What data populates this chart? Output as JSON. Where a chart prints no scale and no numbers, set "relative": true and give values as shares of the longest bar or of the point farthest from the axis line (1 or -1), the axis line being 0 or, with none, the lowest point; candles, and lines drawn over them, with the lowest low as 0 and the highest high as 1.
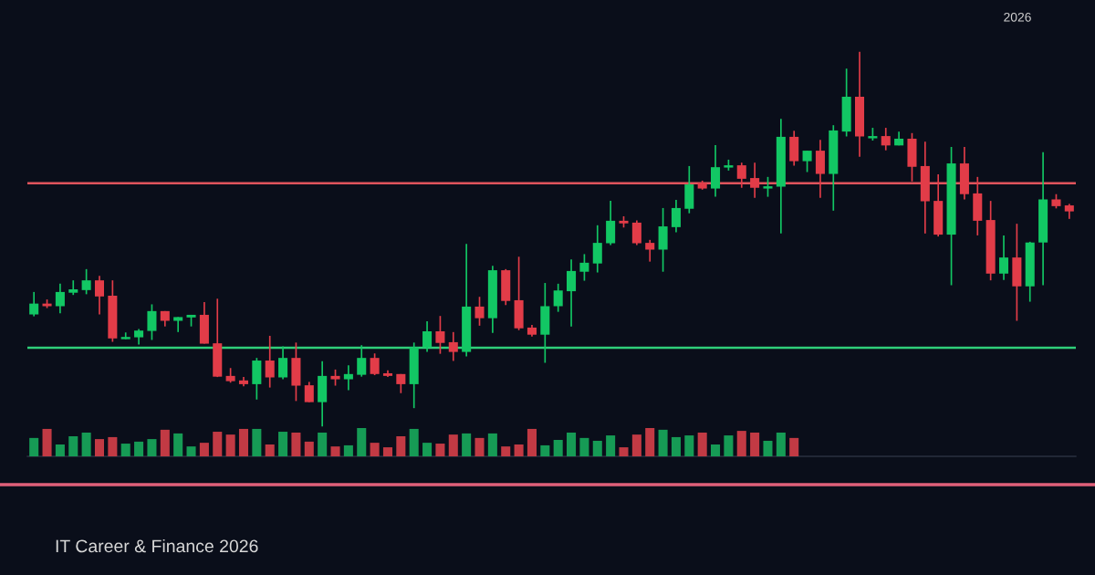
{
  "chart_data": [
    {
      "type": "candlestick",
      "relative": true,
      "subtitle": "IT Career & Finance 2026",
      "annotations": [
        "2026"
      ],
      "colors": [
        "#12c764",
        "#e23c48",
        "#12c764",
        "#12c764",
        "#12c764",
        "#e23c48",
        "#e23c48",
        "#12c764",
        "#12c764",
        "#12c764",
        "#e23c48",
        "#12c764",
        "#12c764",
        "#e23c48",
        "#e23c48",
        "#e23c48",
        "#e23c48",
        "#12c764",
        "#e23c48",
        "#12c764",
        "#e23c48",
        "#e23c48",
        "#12c764",
        "#e23c48",
        "#12c764",
        "#12c764",
        "#e23c48",
        "#e23c48",
        "#e23c48",
        "#12c764",
        "#12c764",
        "#e23c48",
        "#e23c48",
        "#12c764",
        "#e23c48",
        "#12c764",
        "#e23c48",
        "#e23c48",
        "#e23c48",
        "#12c764",
        "#12c764",
        "#12c764",
        "#12c764",
        "#12c764",
        "#12c764",
        "#e23c48",
        "#e23c48",
        "#e23c48",
        "#12c764",
        "#12c764",
        "#12c764",
        "#e23c48",
        "#12c764",
        "#12c764",
        "#e23c48",
        "#e23c48",
        "#12c764",
        "#12c764",
        "#e23c48",
        "#12c764",
        "#e23c48",
        "#12c764",
        "#12c764",
        "#e23c48",
        "#12c764",
        "#e23c48",
        "#12c764",
        "#e23c48",
        "#e23c48",
        "#e23c48",
        "#12c764",
        "#e23c48",
        "#e23c48",
        "#e23c48",
        "#12c764",
        "#e23c48",
        "#12c764",
        "#12c764",
        "#e23c48",
        "#e23c48"
      ],
      "categories": [
        null,
        null,
        null,
        null,
        null,
        null,
        null,
        null,
        null,
        null,
        null,
        null,
        null,
        null,
        null,
        null,
        null,
        null,
        null,
        null,
        null,
        null,
        null,
        null,
        null,
        null,
        null,
        null,
        null,
        null,
        null,
        null,
        null,
        null,
        null,
        null,
        null,
        null,
        null,
        null,
        null,
        null,
        null,
        null,
        null,
        null,
        null,
        null,
        null,
        null,
        null,
        null,
        null,
        null,
        null,
        null,
        null,
        null,
        null,
        null,
        null,
        null,
        null,
        null,
        null,
        null,
        null,
        null,
        null,
        null,
        null,
        null,
        null,
        null,
        null,
        null,
        null,
        null,
        null,
        null
      ],
      "ohlc": [
        [
          0.299,
          0.359,
          0.294,
          0.328
        ],
        [
          0.328,
          0.339,
          0.316,
          0.321
        ],
        [
          0.321,
          0.381,
          0.302,
          0.359
        ],
        [
          0.357,
          0.39,
          0.351,
          0.366
        ],
        [
          0.364,
          0.42,
          0.353,
          0.39
        ],
        [
          0.39,
          0.402,
          0.299,
          0.347
        ],
        [
          0.349,
          0.39,
          0.226,
          0.235
        ],
        [
          0.233,
          0.251,
          0.233,
          0.239
        ],
        [
          0.238,
          0.26,
          0.219,
          0.256
        ],
        [
          0.255,
          0.326,
          0.231,
          0.308
        ],
        [
          0.308,
          0.308,
          0.267,
          0.282
        ],
        [
          0.282,
          0.292,
          0.252,
          0.292
        ],
        [
          0.291,
          0.298,
          0.267,
          0.298
        ],
        [
          0.298,
          0.332,
          0.221,
          0.221
        ],
        [
          0.222,
          0.341,
          0.132,
          0.133
        ],
        [
          0.135,
          0.156,
          0.117,
          0.121
        ],
        [
          0.123,
          0.132,
          0.107,
          0.113
        ],
        [
          0.113,
          0.183,
          0.072,
          0.176
        ],
        [
          0.176,
          0.242,
          0.104,
          0.131
        ],
        [
          0.131,
          0.214,
          0.126,
          0.183
        ],
        [
          0.183,
          0.224,
          0.068,
          0.109
        ],
        [
          0.11,
          0.119,
          0.065,
          0.065
        ],
        [
          0.065,
          0.174,
          0.0,
          0.135
        ],
        [
          0.135,
          0.152,
          0.109,
          0.126
        ],
        [
          0.126,
          0.163,
          0.097,
          0.14
        ],
        [
          0.138,
          0.217,
          0.133,
          0.183
        ],
        [
          0.183,
          0.195,
          0.137,
          0.14
        ],
        [
          0.142,
          0.15,
          0.132,
          0.135
        ],
        [
          0.14,
          0.14,
          0.089,
          0.113
        ],
        [
          0.113,
          0.224,
          0.049,
          0.211
        ],
        [
          0.211,
          0.281,
          0.199,
          0.254
        ],
        [
          0.254,
          0.295,
          0.194,
          0.223
        ],
        [
          0.225,
          0.252,
          0.175,
          0.199
        ],
        [
          0.199,
          0.487,
          0.187,
          0.32
        ],
        [
          0.32,
          0.346,
          0.269,
          0.289
        ],
        [
          0.289,
          0.429,
          0.25,
          0.417
        ],
        [
          0.417,
          0.42,
          0.324,
          0.335
        ],
        [
          0.337,
          0.453,
          0.257,
          0.262
        ],
        [
          0.264,
          0.271,
          0.24,
          0.245
        ],
        [
          0.245,
          0.383,
          0.17,
          0.321
        ],
        [
          0.321,
          0.381,
          0.306,
          0.363
        ],
        [
          0.361,
          0.446,
          0.267,
          0.415
        ],
        [
          0.413,
          0.46,
          0.389,
          0.437
        ],
        [
          0.435,
          0.537,
          0.411,
          0.49
        ],
        [
          0.489,
          0.602,
          0.484,
          0.549
        ],
        [
          0.549,
          0.561,
          0.531,
          0.542
        ],
        [
          0.544,
          0.55,
          0.484,
          0.489
        ],
        [
          0.49,
          0.498,
          0.44,
          0.472
        ],
        [
          0.472,
          0.583,
          0.413,
          0.534
        ],
        [
          0.532,
          0.605,
          0.518,
          0.583
        ],
        [
          0.581,
          0.695,
          0.569,
          0.646
        ],
        [
          0.65,
          0.656,
          0.632,
          0.635
        ],
        [
          0.635,
          0.751,
          0.613,
          0.692
        ],
        [
          0.691,
          0.712,
          0.683,
          0.697
        ],
        [
          0.697,
          0.704,
          0.637,
          0.661
        ],
        [
          0.663,
          0.704,
          0.61,
          0.637
        ],
        [
          0.635,
          0.666,
          0.613,
          0.641
        ],
        [
          0.64,
          0.821,
          0.515,
          0.773
        ],
        [
          0.773,
          0.789,
          0.696,
          0.708
        ],
        [
          0.708,
          0.736,
          0.679,
          0.736
        ],
        [
          0.736,
          0.765,
          0.61,
          0.674
        ],
        [
          0.674,
          0.804,
          0.576,
          0.79
        ],
        [
          0.787,
          0.955,
          0.774,
          0.88
        ],
        [
          0.88,
          1.0,
          0.72,
          0.774
        ],
        [
          0.769,
          0.797,
          0.763,
          0.775
        ],
        [
          0.775,
          0.797,
          0.737,
          0.75
        ],
        [
          0.75,
          0.787,
          0.75,
          0.768
        ],
        [
          0.768,
          0.783,
          0.654,
          0.693
        ],
        [
          0.695,
          0.76,
          0.515,
          0.601
        ],
        [
          0.602,
          0.673,
          0.507,
          0.512
        ],
        [
          0.512,
          0.746,
          0.377,
          0.702
        ],
        [
          0.702,
          0.746,
          0.606,
          0.62
        ],
        [
          0.622,
          0.666,
          0.51,
          0.549
        ],
        [
          0.551,
          0.602,
          0.39,
          0.408
        ],
        [
          0.408,
          0.51,
          0.391,
          0.451
        ],
        [
          0.451,
          0.541,
          0.282,
          0.374
        ],
        [
          0.374,
          0.493,
          0.333,
          0.491
        ],
        [
          0.491,
          0.732,
          0.377,
          0.606
        ],
        [
          0.606,
          0.62,
          0.582,
          0.588
        ],
        [
          0.59,
          0.594,
          0.554,
          0.574
        ]
      ],
      "ref_lines": [
        {
          "axis": "y",
          "value": 0.649,
          "color": "#e0545c"
        },
        {
          "axis": "y",
          "value": 0.21,
          "color": "#2fcf7a"
        }
      ]
    },
    {
      "type": "bar",
      "relative": true,
      "categories": [
        null,
        null,
        null,
        null,
        null,
        null,
        null,
        null,
        null,
        null,
        null,
        null,
        null,
        null,
        null,
        null,
        null,
        null,
        null,
        null,
        null,
        null,
        null,
        null,
        null,
        null,
        null,
        null,
        null,
        null,
        null,
        null,
        null,
        null,
        null,
        null,
        null,
        null,
        null,
        null,
        null,
        null,
        null,
        null,
        null,
        null,
        null,
        null,
        null,
        null,
        null,
        null,
        null,
        null,
        null,
        null,
        null,
        null,
        null
      ],
      "values": [
        0.65,
        0.97,
        0.42,
        0.71,
        0.84,
        0.61,
        0.68,
        0.45,
        0.52,
        0.61,
        0.94,
        0.81,
        0.35,
        0.48,
        0.87,
        0.77,
        0.97,
        0.97,
        0.42,
        0.87,
        0.84,
        0.52,
        0.84,
        0.35,
        0.39,
        1,
        0.48,
        0.32,
        0.71,
        0.97,
        0.48,
        0.45,
        0.77,
        0.81,
        0.65,
        0.81,
        0.35,
        0.42,
        0.97,
        0.39,
        0.58,
        0.84,
        0.65,
        0.55,
        0.74,
        0.32,
        0.77,
        1,
        0.94,
        0.68,
        0.74,
        0.84,
        0.42,
        0.74,
        0.9,
        0.84,
        0.55,
        0.84,
        0.65
      ],
      "colors": [
        "#169b55",
        "#c23a44",
        "#169b55",
        "#169b55",
        "#169b55",
        "#c23a44",
        "#c23a44",
        "#169b55",
        "#169b55",
        "#169b55",
        "#c23a44",
        "#169b55",
        "#169b55",
        "#c23a44",
        "#c23a44",
        "#c23a44",
        "#c23a44",
        "#169b55",
        "#c23a44",
        "#169b55",
        "#c23a44",
        "#c23a44",
        "#169b55",
        "#c23a44",
        "#169b55",
        "#169b55",
        "#c23a44",
        "#c23a44",
        "#c23a44",
        "#169b55",
        "#169b55",
        "#c23a44",
        "#c23a44",
        "#169b55",
        "#c23a44",
        "#169b55",
        "#c23a44",
        "#c23a44",
        "#c23a44",
        "#169b55",
        "#169b55",
        "#169b55",
        "#169b55",
        "#169b55",
        "#169b55",
        "#c23a44",
        "#c23a44",
        "#c23a44",
        "#169b55",
        "#169b55",
        "#169b55",
        "#c23a44",
        "#169b55",
        "#169b55",
        "#c23a44",
        "#c23a44",
        "#169b55",
        "#169b55",
        "#c23a44"
      ]
    }
  ]
}
